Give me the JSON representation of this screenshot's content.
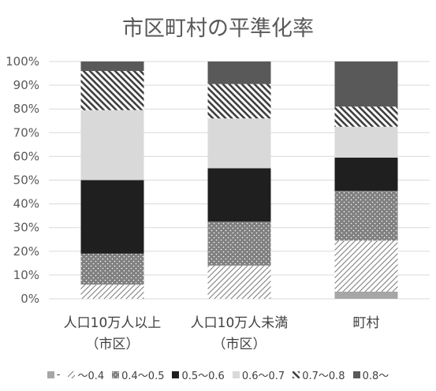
{
  "chart_data": {
    "type": "bar",
    "stacked": true,
    "percent": true,
    "title": "市区町村の平準化率",
    "xlabel": "",
    "ylabel": "",
    "ylim": [
      0,
      100
    ],
    "y_ticks": [
      "0%",
      "10%",
      "20%",
      "30%",
      "40%",
      "50%",
      "60%",
      "70%",
      "80%",
      "90%",
      "100%"
    ],
    "categories": [
      [
        "人口10万人以上",
        "（市区）"
      ],
      [
        "人口10万人未満",
        "（市区）"
      ],
      [
        "町村"
      ]
    ],
    "series": [
      {
        "name": "-",
        "color": "#a6a6a6",
        "pattern": "solid-light",
        "values": [
          0,
          0,
          3
        ]
      },
      {
        "name": "～0.4",
        "color": "#ffffff",
        "pattern": "diag-up",
        "values": [
          6,
          14,
          21.5
        ]
      },
      {
        "name": "0.4～0.5",
        "color": "#808080",
        "pattern": "dots",
        "values": [
          13,
          18.5,
          21
        ]
      },
      {
        "name": "0.5～0.6",
        "color": "#1f1f1f",
        "pattern": "solid",
        "values": [
          31,
          22.5,
          14
        ]
      },
      {
        "name": "0.6～0.7",
        "color": "#d9d9d9",
        "pattern": "solid",
        "values": [
          29.5,
          21,
          13
        ]
      },
      {
        "name": "0.7～0.8",
        "color": "#ffffff",
        "pattern": "diag-down",
        "values": [
          16.5,
          14.5,
          8.5
        ]
      },
      {
        "name": "0.8～",
        "color": "#595959",
        "pattern": "solid",
        "values": [
          4,
          9.5,
          19
        ]
      }
    ],
    "grid": true,
    "legend": "bottom"
  }
}
